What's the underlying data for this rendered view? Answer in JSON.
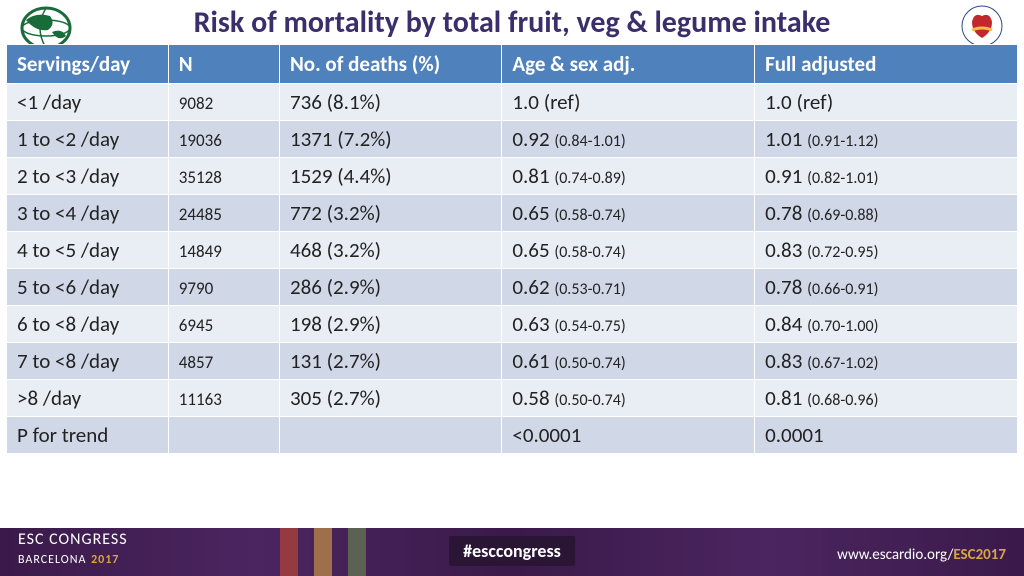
{
  "title": "Risk of mortality by total fruit, veg & legume intake",
  "footer": {
    "left_a": "ESC CONGRESS",
    "left_b": "BARCELONA",
    "year": "2017",
    "center": "#esccongress",
    "right_a": "www.escardio.org/",
    "right_b": "ESC2017"
  },
  "colors": {
    "header_bg": "#4f81bd",
    "row_odd": "#e9edf4",
    "row_even": "#d0d8e8",
    "title_color": "#3a2f6b"
  },
  "table": {
    "columns": [
      "Servings/day",
      "N",
      "No. of deaths (%)",
      "Age & sex adj.",
      "Full adjusted"
    ],
    "rows": [
      {
        "s": "<1 /day",
        "n": "9082",
        "d": "736 (8.1%)",
        "a": "1.0 (ref)",
        "a_ci": "",
        "f": "1.0 (ref)",
        "f_ci": ""
      },
      {
        "s": "1 to <2 /day",
        "n": "19036",
        "d": "1371 (7.2%)",
        "a": "0.92",
        "a_ci": "(0.84-1.01)",
        "f": "1.01",
        "f_ci": "(0.91-1.12)"
      },
      {
        "s": "2 to <3 /day",
        "n": "35128",
        "d": "1529 (4.4%)",
        "a": "0.81",
        "a_ci": "(0.74-0.89)",
        "f": "0.91",
        "f_ci": "(0.82-1.01)"
      },
      {
        "s": "3 to <4 /day",
        "n": "24485",
        "d": "772 (3.2%)",
        "a": "0.65",
        "a_ci": "(0.58-0.74)",
        "f": "0.78",
        "f_ci": "(0.69-0.88)"
      },
      {
        "s": "4 to <5 /day",
        "n": "14849",
        "d": "468 (3.2%)",
        "a": "0.65",
        "a_ci": "(0.58-0.74)",
        "f": "0.83",
        "f_ci": "(0.72-0.95)"
      },
      {
        "s": "5 to <6 /day",
        "n": "9790",
        "d": "286 (2.9%)",
        "a": "0.62",
        "a_ci": "(0.53-0.71)",
        "f": "0.78",
        "f_ci": "(0.66-0.91)"
      },
      {
        "s": "6 to <8 /day",
        "n": "6945",
        "d": "198 (2.9%)",
        "a": "0.63",
        "a_ci": "(0.54-0.75)",
        "f": "0.84",
        "f_ci": "(0.70-1.00)"
      },
      {
        "s": "7 to <8 /day",
        "n": "4857",
        "d": "131 (2.7%)",
        "a": "0.61",
        "a_ci": "(0.50-0.74)",
        "f": "0.83",
        "f_ci": "(0.67-1.02)"
      },
      {
        "s": ">8 /day",
        "n": "11163",
        "d": "305 (2.7%)",
        "a": "0.58",
        "a_ci": "(0.50-0.74)",
        "f": "0.81",
        "f_ci": "(0.68-0.96)"
      },
      {
        "s": "P for trend",
        "n": "",
        "d": "",
        "a": "<0.0001",
        "a_ci": "",
        "f": "0.0001",
        "f_ci": ""
      }
    ]
  }
}
